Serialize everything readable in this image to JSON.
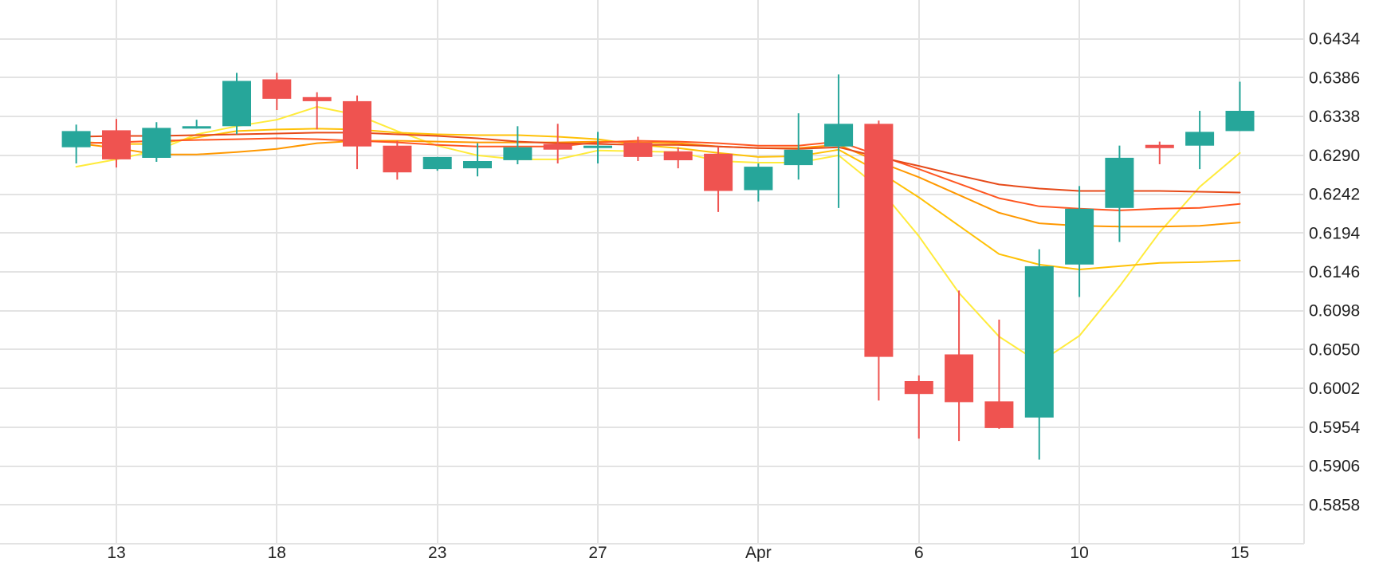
{
  "chart_data": {
    "type": "candlestick",
    "title": "",
    "xlabel": "",
    "ylabel": "",
    "ylim": [
      0.581,
      0.6482
    ],
    "y_ticks": [
      0.6434,
      0.6386,
      0.6338,
      0.629,
      0.6242,
      0.6194,
      0.6146,
      0.6098,
      0.605,
      0.6002,
      0.5954,
      0.5906,
      0.5858
    ],
    "y_tick_labels": [
      "0.6434",
      "0.6386",
      "0.6338",
      "0.6290",
      "0.6242",
      "0.6194",
      "0.6146",
      "0.6098",
      "0.6050",
      "0.6002",
      "0.5954",
      "0.5906",
      "0.5858"
    ],
    "y_axis_position": "right",
    "grid": true,
    "x_tick_labels": [
      {
        "label": "13",
        "day": 2
      },
      {
        "label": "18",
        "day": 6
      },
      {
        "label": "23",
        "day": 10
      },
      {
        "label": "27",
        "day": 14
      },
      {
        "label": "Apr",
        "day": 18
      },
      {
        "label": "6",
        "day": 22
      },
      {
        "label": "10",
        "day": 26
      },
      {
        "label": "15",
        "day": 30
      }
    ],
    "x_range_days": [
      -0.9,
      31.6
    ],
    "up_color": "#26a69a",
    "down_color": "#ef5350",
    "candles": [
      {
        "day": 1,
        "open": 0.63,
        "high": 0.6328,
        "low": 0.628,
        "close": 0.632
      },
      {
        "day": 2,
        "open": 0.6321,
        "high": 0.6335,
        "low": 0.6275,
        "close": 0.6285
      },
      {
        "day": 3,
        "open": 0.6287,
        "high": 0.6331,
        "low": 0.6282,
        "close": 0.6324
      },
      {
        "day": 4,
        "open": 0.6323,
        "high": 0.6334,
        "low": 0.6323,
        "close": 0.6326
      },
      {
        "day": 5,
        "open": 0.6326,
        "high": 0.6392,
        "low": 0.6316,
        "close": 0.6382
      },
      {
        "day": 6,
        "open": 0.6384,
        "high": 0.6392,
        "low": 0.6346,
        "close": 0.636
      },
      {
        "day": 7,
        "open": 0.6362,
        "high": 0.6368,
        "low": 0.6322,
        "close": 0.6357
      },
      {
        "day": 8,
        "open": 0.6357,
        "high": 0.6364,
        "low": 0.6273,
        "close": 0.6301
      },
      {
        "day": 9,
        "open": 0.6302,
        "high": 0.6308,
        "low": 0.626,
        "close": 0.6269
      },
      {
        "day": 10,
        "open": 0.6273,
        "high": 0.6288,
        "low": 0.6271,
        "close": 0.6288
      },
      {
        "day": 11,
        "open": 0.6274,
        "high": 0.6305,
        "low": 0.6264,
        "close": 0.6283
      },
      {
        "day": 12,
        "open": 0.6284,
        "high": 0.6326,
        "low": 0.6279,
        "close": 0.63
      },
      {
        "day": 13,
        "open": 0.6304,
        "high": 0.6329,
        "low": 0.628,
        "close": 0.6297
      },
      {
        "day": 14,
        "open": 0.6299,
        "high": 0.6319,
        "low": 0.628,
        "close": 0.6302
      },
      {
        "day": 15,
        "open": 0.6306,
        "high": 0.6313,
        "low": 0.6283,
        "close": 0.6288
      },
      {
        "day": 16,
        "open": 0.6295,
        "high": 0.63,
        "low": 0.6274,
        "close": 0.6284
      },
      {
        "day": 17,
        "open": 0.6292,
        "high": 0.6301,
        "low": 0.622,
        "close": 0.6246
      },
      {
        "day": 18,
        "open": 0.6247,
        "high": 0.628,
        "low": 0.6233,
        "close": 0.6276
      },
      {
        "day": 19,
        "open": 0.6278,
        "high": 0.6342,
        "low": 0.626,
        "close": 0.6297
      },
      {
        "day": 20,
        "open": 0.6301,
        "high": 0.639,
        "low": 0.6225,
        "close": 0.6329
      },
      {
        "day": 21,
        "open": 0.6329,
        "high": 0.6333,
        "low": 0.5987,
        "close": 0.6041
      },
      {
        "day": 22,
        "open": 0.6011,
        "high": 0.6018,
        "low": 0.594,
        "close": 0.5995
      },
      {
        "day": 23,
        "open": 0.6044,
        "high": 0.6123,
        "low": 0.5937,
        "close": 0.5985
      },
      {
        "day": 24,
        "open": 0.5986,
        "high": 0.6087,
        "low": 0.5952,
        "close": 0.5953
      },
      {
        "day": 25,
        "open": 0.5966,
        "high": 0.6174,
        "low": 0.5914,
        "close": 0.6153
      },
      {
        "day": 26,
        "open": 0.6155,
        "high": 0.6252,
        "low": 0.6115,
        "close": 0.6224
      },
      {
        "day": 27,
        "open": 0.6225,
        "high": 0.6302,
        "low": 0.6183,
        "close": 0.6287
      },
      {
        "day": 28,
        "open": 0.6303,
        "high": 0.6307,
        "low": 0.6279,
        "close": 0.6299
      },
      {
        "day": 29,
        "open": 0.6302,
        "high": 0.6345,
        "low": 0.6273,
        "close": 0.6319
      },
      {
        "day": 30,
        "open": 0.632,
        "high": 0.6381,
        "low": 0.632,
        "close": 0.6345
      }
    ],
    "moving_averages": [
      {
        "color": "#ffeb3b",
        "points": [
          [
            1,
            0.6276
          ],
          [
            2,
            0.6285
          ],
          [
            3,
            0.6296
          ],
          [
            4,
            0.6316
          ],
          [
            5,
            0.6326
          ],
          [
            6,
            0.6334
          ],
          [
            7,
            0.635
          ],
          [
            8,
            0.634
          ],
          [
            9,
            0.632
          ],
          [
            10,
            0.6302
          ],
          [
            11,
            0.629
          ],
          [
            12,
            0.6285
          ],
          [
            13,
            0.6285
          ],
          [
            14,
            0.6296
          ],
          [
            15,
            0.6295
          ],
          [
            16,
            0.6294
          ],
          [
            17,
            0.6283
          ],
          [
            18,
            0.6281
          ],
          [
            19,
            0.6281
          ],
          [
            20,
            0.629
          ],
          [
            21,
            0.625
          ],
          [
            22,
            0.619
          ],
          [
            23,
            0.612
          ],
          [
            24,
            0.6066
          ],
          [
            25,
            0.6034
          ],
          [
            26,
            0.6067
          ],
          [
            27,
            0.6128
          ],
          [
            28,
            0.6195
          ],
          [
            29,
            0.6251
          ],
          [
            30,
            0.6293
          ]
        ]
      },
      {
        "color": "#ffc107",
        "points": [
          [
            1,
            0.6307
          ],
          [
            2,
            0.6304
          ],
          [
            3,
            0.6304
          ],
          [
            4,
            0.6312
          ],
          [
            5,
            0.632
          ],
          [
            6,
            0.6322
          ],
          [
            7,
            0.6323
          ],
          [
            8,
            0.6322
          ],
          [
            9,
            0.6318
          ],
          [
            10,
            0.6316
          ],
          [
            11,
            0.6315
          ],
          [
            12,
            0.6315
          ],
          [
            13,
            0.6313
          ],
          [
            14,
            0.631
          ],
          [
            15,
            0.6303
          ],
          [
            16,
            0.6299
          ],
          [
            17,
            0.6293
          ],
          [
            18,
            0.6288
          ],
          [
            19,
            0.6289
          ],
          [
            20,
            0.6297
          ],
          [
            21,
            0.627
          ],
          [
            22,
            0.6238
          ],
          [
            23,
            0.6203
          ],
          [
            24,
            0.6168
          ],
          [
            25,
            0.6155
          ],
          [
            26,
            0.6149
          ],
          [
            27,
            0.6153
          ],
          [
            28,
            0.6157
          ],
          [
            29,
            0.6158
          ],
          [
            30,
            0.616
          ]
        ]
      },
      {
        "color": "#ff9800",
        "points": [
          [
            1,
            0.6305
          ],
          [
            2,
            0.6299
          ],
          [
            3,
            0.6291
          ],
          [
            4,
            0.6291
          ],
          [
            5,
            0.6294
          ],
          [
            6,
            0.6298
          ],
          [
            7,
            0.6305
          ],
          [
            8,
            0.6308
          ],
          [
            9,
            0.6308
          ],
          [
            10,
            0.6307
          ],
          [
            11,
            0.6306
          ],
          [
            12,
            0.6306
          ],
          [
            13,
            0.6306
          ],
          [
            14,
            0.6307
          ],
          [
            15,
            0.6306
          ],
          [
            16,
            0.6305
          ],
          [
            17,
            0.6301
          ],
          [
            18,
            0.6299
          ],
          [
            19,
            0.6299
          ],
          [
            20,
            0.6303
          ],
          [
            21,
            0.6282
          ],
          [
            22,
            0.6263
          ],
          [
            23,
            0.6241
          ],
          [
            24,
            0.6219
          ],
          [
            25,
            0.6206
          ],
          [
            26,
            0.6203
          ],
          [
            27,
            0.6202
          ],
          [
            28,
            0.6202
          ],
          [
            29,
            0.6203
          ],
          [
            30,
            0.6207
          ]
        ]
      },
      {
        "color": "#ff5722",
        "points": [
          [
            1,
            0.6305
          ],
          [
            2,
            0.6306
          ],
          [
            3,
            0.6308
          ],
          [
            4,
            0.6309
          ],
          [
            5,
            0.631
          ],
          [
            6,
            0.6311
          ],
          [
            7,
            0.631
          ],
          [
            8,
            0.6308
          ],
          [
            9,
            0.6306
          ],
          [
            10,
            0.6303
          ],
          [
            11,
            0.6301
          ],
          [
            12,
            0.6301
          ],
          [
            13,
            0.6301
          ],
          [
            14,
            0.6306
          ],
          [
            15,
            0.6308
          ],
          [
            16,
            0.6307
          ],
          [
            17,
            0.6305
          ],
          [
            18,
            0.6302
          ],
          [
            19,
            0.6302
          ],
          [
            20,
            0.6307
          ],
          [
            21,
            0.629
          ],
          [
            22,
            0.6273
          ],
          [
            23,
            0.6255
          ],
          [
            24,
            0.6237
          ],
          [
            25,
            0.6227
          ],
          [
            26,
            0.6224
          ],
          [
            27,
            0.6222
          ],
          [
            28,
            0.6224
          ],
          [
            29,
            0.6225
          ],
          [
            30,
            0.623
          ]
        ]
      },
      {
        "color": "#e64a19",
        "points": [
          [
            1,
            0.6313
          ],
          [
            2,
            0.6314
          ],
          [
            3,
            0.6314
          ],
          [
            4,
            0.6315
          ],
          [
            5,
            0.6316
          ],
          [
            6,
            0.6317
          ],
          [
            7,
            0.6318
          ],
          [
            8,
            0.6318
          ],
          [
            9,
            0.6316
          ],
          [
            10,
            0.6314
          ],
          [
            11,
            0.6311
          ],
          [
            12,
            0.6307
          ],
          [
            13,
            0.6305
          ],
          [
            14,
            0.6304
          ],
          [
            15,
            0.6303
          ],
          [
            16,
            0.6303
          ],
          [
            17,
            0.6301
          ],
          [
            18,
            0.6299
          ],
          [
            19,
            0.6298
          ],
          [
            20,
            0.63
          ],
          [
            21,
            0.6288
          ],
          [
            22,
            0.6277
          ],
          [
            23,
            0.6265
          ],
          [
            24,
            0.6254
          ],
          [
            25,
            0.6249
          ],
          [
            26,
            0.6246
          ],
          [
            27,
            0.6246
          ],
          [
            28,
            0.6246
          ],
          [
            29,
            0.6245
          ],
          [
            30,
            0.6244
          ]
        ]
      }
    ]
  }
}
